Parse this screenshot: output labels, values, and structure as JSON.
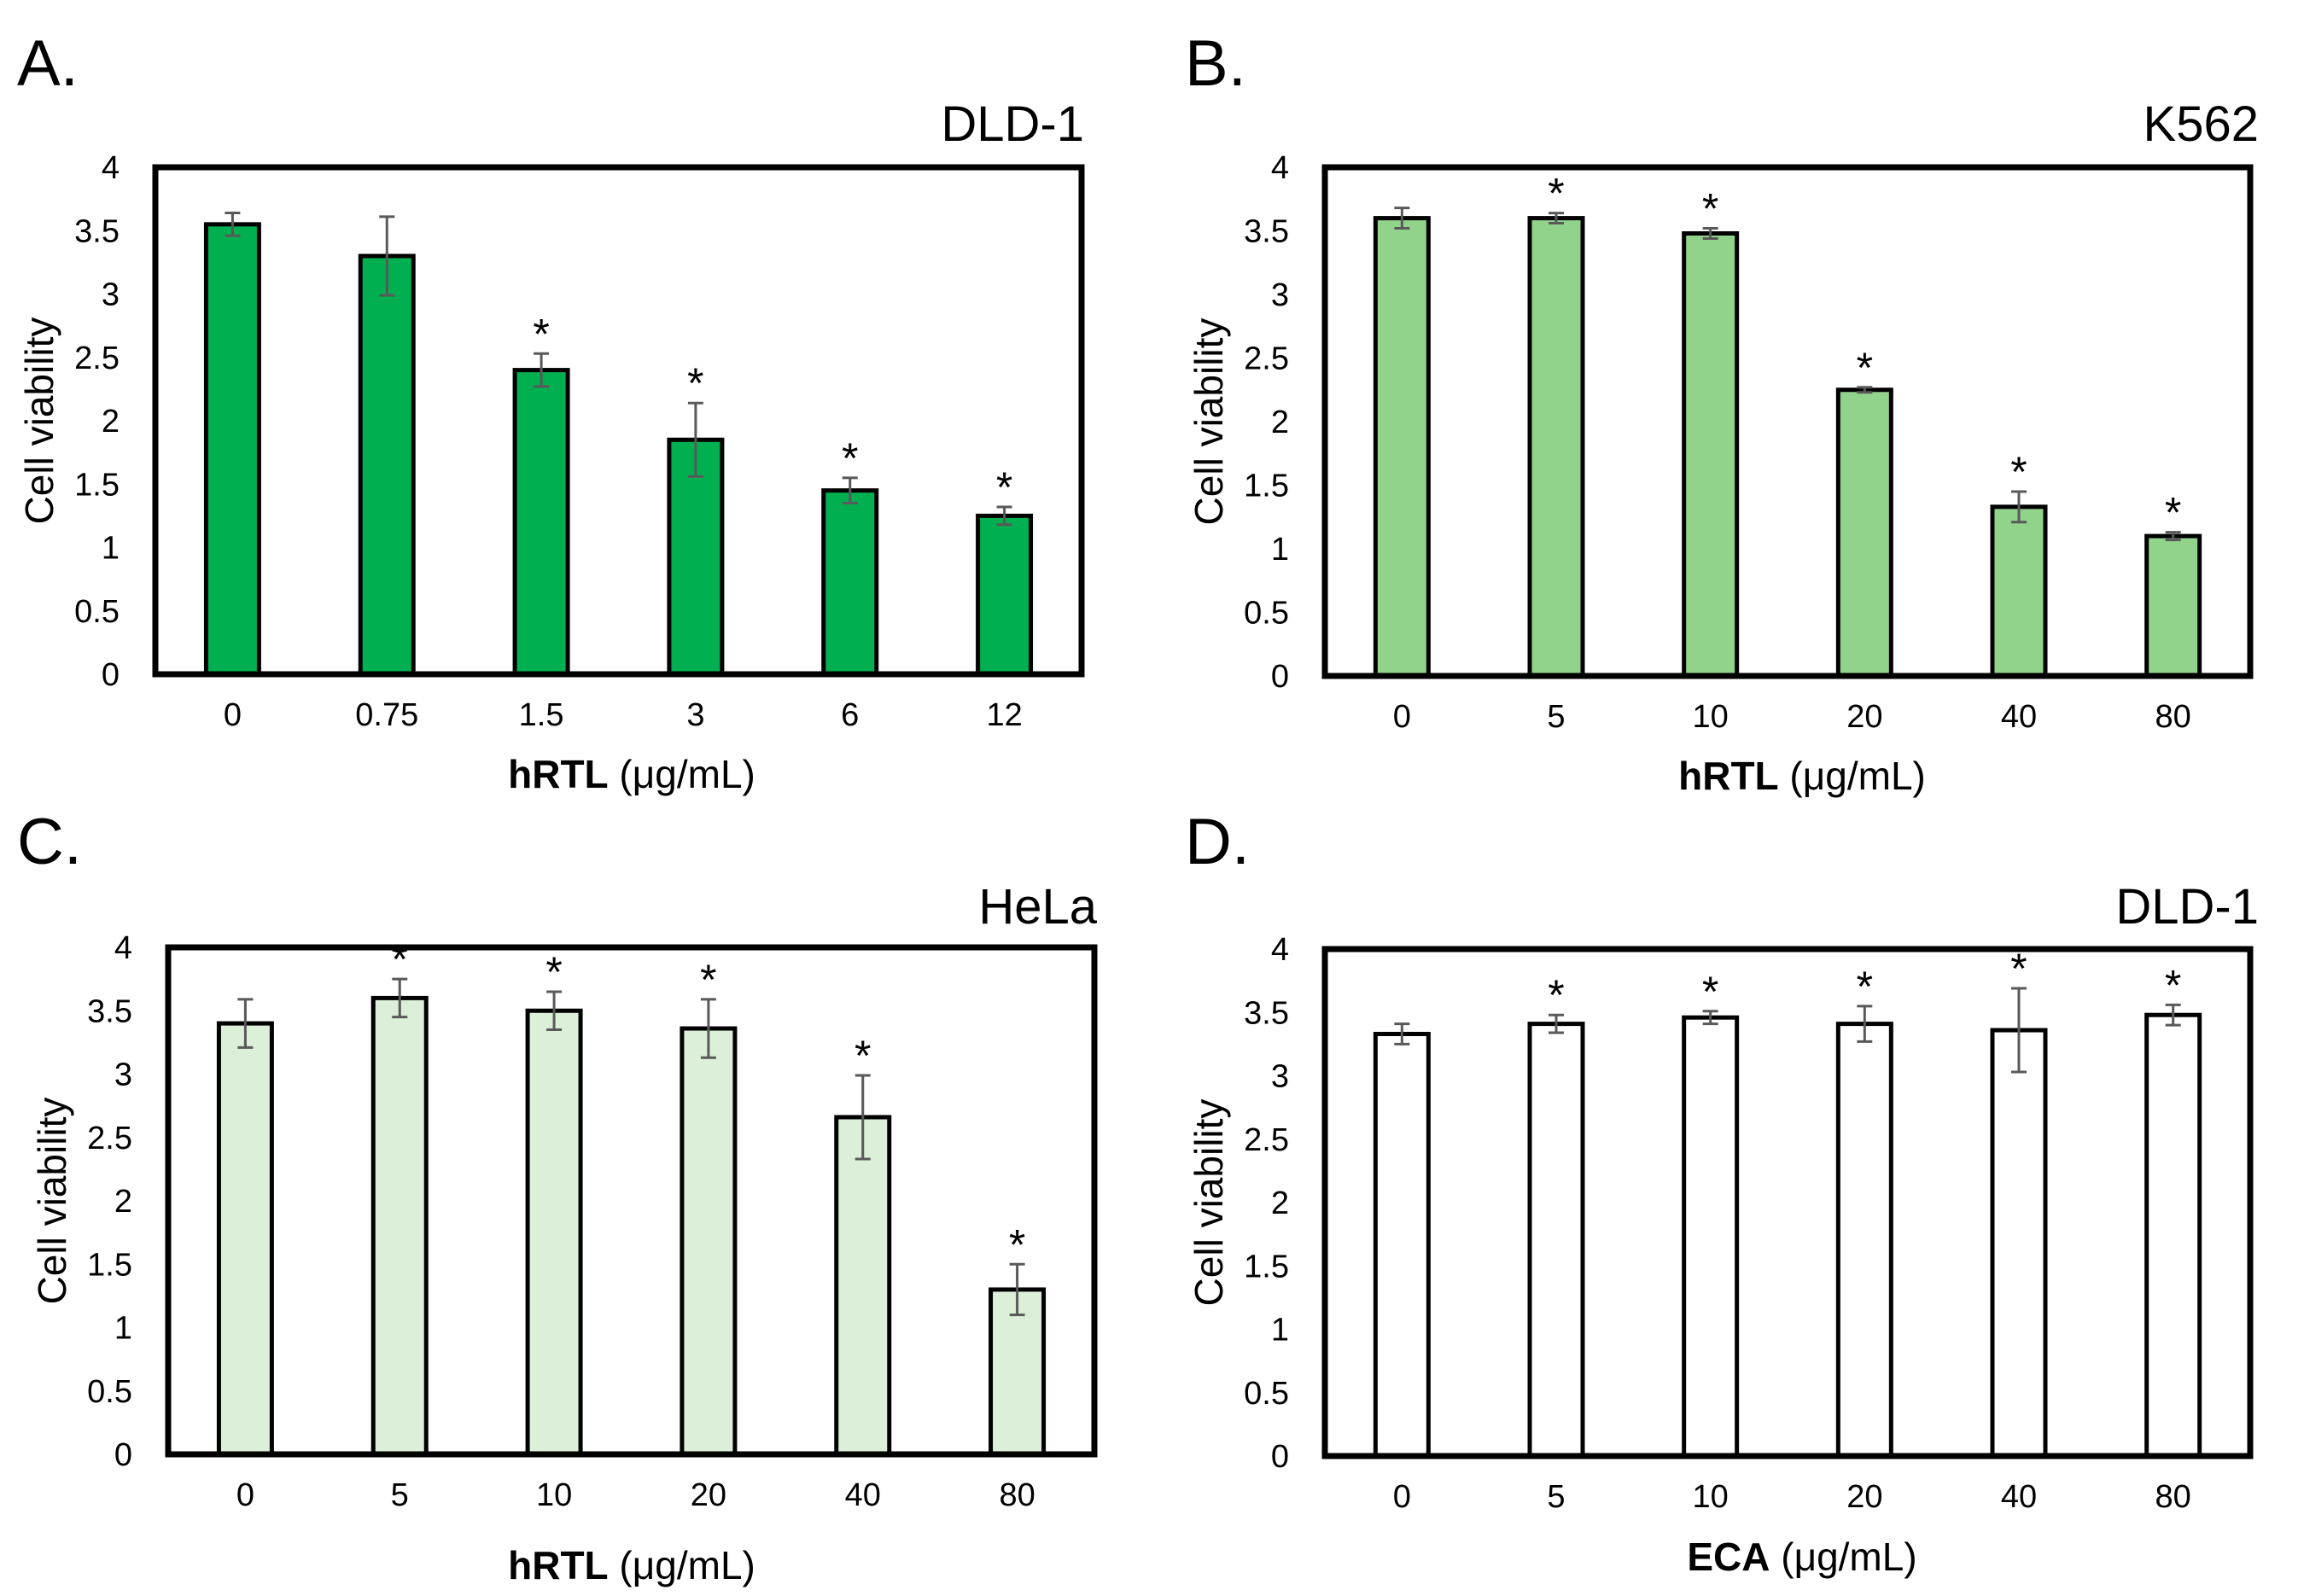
{
  "chart_data": [
    {
      "panel_label": "A.",
      "title": "DLD-1",
      "type": "bar",
      "ylabel": "Cell viability",
      "xlabel_bold": "hRTL",
      "xlabel_rest": " (μg/mL)",
      "ylim": [
        0,
        4
      ],
      "yticks": [
        "0",
        "0.5",
        "1",
        "1.5",
        "2",
        "2.5",
        "3",
        "3.5",
        "4"
      ],
      "categories": [
        "0",
        "0.75",
        "1.5",
        "3",
        "6",
        "12"
      ],
      "values": [
        3.55,
        3.3,
        2.4,
        1.85,
        1.45,
        1.25
      ],
      "errors": [
        0.09,
        0.31,
        0.13,
        0.29,
        0.1,
        0.07
      ],
      "significance": [
        "",
        "",
        "*",
        "*",
        "*",
        "*"
      ],
      "fill": "#00b050"
    },
    {
      "panel_label": "B.",
      "title": "K562",
      "type": "bar",
      "ylabel": "Cell viability",
      "xlabel_bold": "hRTL",
      "xlabel_rest": " (μg/mL)",
      "ylim": [
        0,
        4
      ],
      "yticks": [
        "0",
        "0.5",
        "1",
        "1.5",
        "2",
        "2.5",
        "3",
        "3.5",
        "4"
      ],
      "categories": [
        "0",
        "5",
        "10",
        "20",
        "40",
        "80"
      ],
      "values": [
        3.6,
        3.6,
        3.48,
        2.25,
        1.33,
        1.1
      ],
      "errors": [
        0.08,
        0.04,
        0.04,
        0.02,
        0.12,
        0.03
      ],
      "significance": [
        "",
        "*",
        "*",
        "*",
        "*",
        "*"
      ],
      "fill": "#92d38c"
    },
    {
      "panel_label": "C.",
      "title": "HeLa",
      "type": "bar",
      "ylabel": "Cell viability",
      "xlabel_bold": "hRTL",
      "xlabel_rest": " (μg/mL)",
      "ylim": [
        0,
        4
      ],
      "yticks": [
        "0",
        "0.5",
        "1",
        "1.5",
        "2",
        "2.5",
        "3",
        "3.5",
        "4"
      ],
      "categories": [
        "0",
        "5",
        "10",
        "20",
        "40",
        "80"
      ],
      "values": [
        3.4,
        3.6,
        3.5,
        3.36,
        2.66,
        1.3
      ],
      "errors": [
        0.19,
        0.15,
        0.15,
        0.23,
        0.33,
        0.2
      ],
      "significance": [
        "",
        "*",
        "*",
        "*",
        "*",
        "*"
      ],
      "fill": "#dcf0d9"
    },
    {
      "panel_label": "D.",
      "title": "DLD-1",
      "type": "bar",
      "ylabel": "Cell viability",
      "xlabel_bold": "ECA",
      "xlabel_rest": " (μg/mL)",
      "ylim": [
        0,
        4
      ],
      "yticks": [
        "0",
        "0.5",
        "1",
        "1.5",
        "2",
        "2.5",
        "3",
        "3.5",
        "4"
      ],
      "categories": [
        "0",
        "5",
        "10",
        "20",
        "40",
        "80"
      ],
      "values": [
        3.33,
        3.41,
        3.46,
        3.41,
        3.36,
        3.48
      ],
      "errors": [
        0.08,
        0.07,
        0.05,
        0.14,
        0.33,
        0.08
      ],
      "significance": [
        "",
        "*",
        "*",
        "*",
        "*",
        "*"
      ],
      "fill": "#ffffff"
    }
  ]
}
